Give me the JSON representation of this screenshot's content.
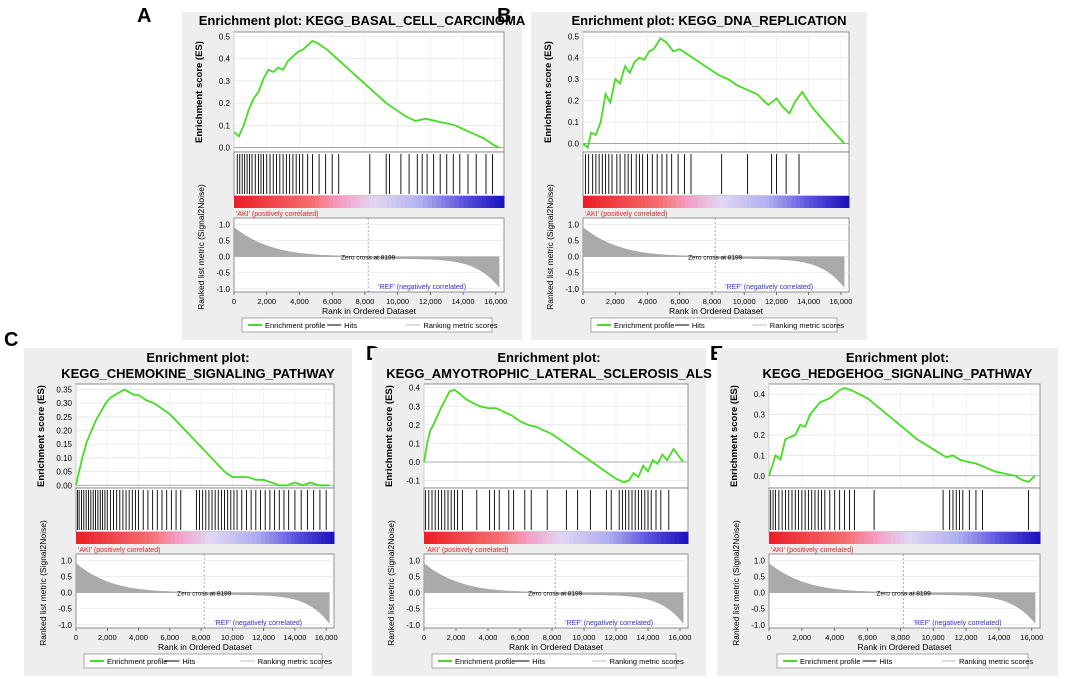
{
  "chart_data": [
    {
      "panel": "A",
      "type": "line",
      "title": "Enrichment plot: KEGG_BASAL_CELL_CARCINOMA",
      "ylabel_es": "Enrichment score (ES)",
      "ylabel_rank": "Ranked list metric (Signal2Noise)",
      "xlabel": "Rank in Ordered Dataset",
      "es_yticks": [
        "0.0",
        "0.1",
        "0.2",
        "0.3",
        "0.4",
        "0.5"
      ],
      "es_ylim": [
        -0.02,
        0.52
      ],
      "x": [
        0,
        300,
        600,
        900,
        1200,
        1500,
        1800,
        2100,
        2400,
        2700,
        3000,
        3300,
        3600,
        3900,
        4200,
        4500,
        4800,
        5100,
        5700,
        6300,
        6900,
        7500,
        8100,
        8700,
        9300,
        9900,
        10500,
        11100,
        11700,
        12300,
        12900,
        13500,
        14100,
        14700,
        15300,
        15900,
        16200
      ],
      "es": [
        0.07,
        0.05,
        0.1,
        0.17,
        0.22,
        0.25,
        0.31,
        0.35,
        0.34,
        0.36,
        0.35,
        0.39,
        0.41,
        0.43,
        0.44,
        0.46,
        0.48,
        0.47,
        0.44,
        0.4,
        0.36,
        0.32,
        0.28,
        0.24,
        0.2,
        0.17,
        0.14,
        0.12,
        0.13,
        0.12,
        0.11,
        0.1,
        0.08,
        0.06,
        0.04,
        0.01,
        0.0
      ],
      "hits": [
        200,
        350,
        500,
        650,
        800,
        950,
        1100,
        1300,
        1500,
        1650,
        1800,
        2000,
        2200,
        2400,
        2600,
        2800,
        3000,
        3200,
        3400,
        3600,
        3800,
        4000,
        4200,
        4500,
        4800,
        5200,
        5600,
        6000,
        6400,
        8300,
        9300,
        9500,
        10200,
        10700,
        11200,
        11500,
        11800,
        12200,
        12600,
        13000,
        13400,
        13800,
        14300,
        14800,
        15400,
        15800
      ],
      "zero_cross": "Zero cross at 8199",
      "pos_label": "'AKI' (positively correlated)",
      "neg_label": "'REF' (negatively correlated)",
      "rank_yticks": [
        "-1.0",
        "-0.5",
        "0.0",
        "0.5",
        "1.0"
      ],
      "xticks": [
        "0",
        "2,000",
        "4,000",
        "6,000",
        "8,000",
        "10,000",
        "12,000",
        "14,000",
        "16,000"
      ],
      "legend": [
        "Enrichment profile",
        "Hits",
        "Ranking metric scores"
      ]
    },
    {
      "panel": "B",
      "type": "line",
      "title": "Enrichment plot: KEGG_DNA_REPLICATION",
      "ylabel_es": "Enrichment score (ES)",
      "ylabel_rank": "Ranked list metric (Signal2Noise)",
      "xlabel": "Rank in Ordered Dataset",
      "es_yticks": [
        "0.0",
        "0.1",
        "0.2",
        "0.3",
        "0.4",
        "0.5"
      ],
      "es_ylim": [
        -0.04,
        0.52
      ],
      "x": [
        0,
        300,
        500,
        800,
        1100,
        1400,
        1700,
        2000,
        2300,
        2600,
        2900,
        3200,
        3500,
        3800,
        4100,
        4400,
        4800,
        5200,
        5600,
        6000,
        6600,
        7200,
        7800,
        8400,
        9000,
        9600,
        10200,
        10800,
        11200,
        11500,
        12000,
        12400,
        12800,
        13200,
        13600,
        14200,
        15000,
        16200
      ],
      "es": [
        0.0,
        -0.02,
        0.05,
        0.04,
        0.1,
        0.23,
        0.19,
        0.3,
        0.28,
        0.36,
        0.33,
        0.38,
        0.4,
        0.39,
        0.43,
        0.44,
        0.49,
        0.47,
        0.43,
        0.44,
        0.41,
        0.38,
        0.35,
        0.32,
        0.3,
        0.27,
        0.25,
        0.23,
        0.2,
        0.18,
        0.21,
        0.17,
        0.14,
        0.2,
        0.24,
        0.17,
        0.1,
        0.0
      ],
      "hits": [
        150,
        350,
        600,
        800,
        1000,
        1200,
        1400,
        1600,
        1800,
        2100,
        2300,
        2600,
        2800,
        3000,
        3300,
        3500,
        3700,
        4000,
        4300,
        4600,
        4900,
        5200,
        5500,
        5900,
        6300,
        6700,
        8600,
        10200,
        11700,
        12000,
        12600,
        13400
      ],
      "zero_cross": "Zero cross at 8199",
      "pos_label": "'AKI' (positively correlated)",
      "neg_label": "'REF' (negatively correlated)",
      "rank_yticks": [
        "-1.0",
        "-0.5",
        "0.0",
        "0.5",
        "1.0"
      ],
      "xticks": [
        "0",
        "2,000",
        "4,000",
        "6,000",
        "8,000",
        "10,000",
        "12,000",
        "14,000",
        "16,000"
      ],
      "legend": [
        "Enrichment profile",
        "Hits",
        "Ranking metric scores"
      ]
    },
    {
      "panel": "C",
      "type": "line",
      "title": "Enrichment plot:",
      "title2": "KEGG_CHEMOKINE_SIGNALING_PATHWAY",
      "ylabel_es": "Enrichment score (ES)",
      "ylabel_rank": "Ranked list metric (Signal2Noise)",
      "xlabel": "Rank in Ordered Dataset",
      "es_yticks": [
        "0.00",
        "0.05",
        "0.10",
        "0.15",
        "0.20",
        "0.25",
        "0.30",
        "0.35"
      ],
      "es_ylim": [
        -0.01,
        0.37
      ],
      "x": [
        0,
        200,
        400,
        700,
        1000,
        1300,
        1600,
        1900,
        2200,
        2500,
        2800,
        3100,
        3400,
        3700,
        4000,
        4500,
        5000,
        5500,
        6000,
        6500,
        7000,
        7500,
        8000,
        8500,
        9000,
        9500,
        10000,
        10500,
        11000,
        11500,
        12000,
        12500,
        13000,
        13500,
        14000,
        14500,
        15000,
        15500,
        16200
      ],
      "es": [
        0.0,
        0.05,
        0.1,
        0.16,
        0.2,
        0.24,
        0.27,
        0.3,
        0.32,
        0.33,
        0.34,
        0.35,
        0.34,
        0.33,
        0.33,
        0.31,
        0.3,
        0.28,
        0.26,
        0.23,
        0.2,
        0.17,
        0.14,
        0.11,
        0.08,
        0.05,
        0.03,
        0.03,
        0.03,
        0.02,
        0.02,
        0.01,
        0.0,
        0.0,
        0.01,
        0.0,
        0.01,
        0.0,
        0.0
      ],
      "hits": [
        100,
        200,
        350,
        500,
        650,
        800,
        950,
        1100,
        1250,
        1400,
        1550,
        1700,
        1850,
        2000,
        2200,
        2400,
        2600,
        2800,
        3000,
        3200,
        3400,
        3600,
        3800,
        4000,
        4300,
        4600,
        4900,
        5200,
        5500,
        5800,
        6100,
        6400,
        6700,
        7700,
        7900,
        8100,
        8300,
        8500,
        8700,
        8900,
        9100,
        9300,
        9500,
        9700,
        9900,
        10100,
        10300,
        10600,
        10900,
        11200,
        11500,
        11800,
        12100,
        12400,
        12700,
        13000,
        13300,
        13600,
        14000,
        14400,
        14800,
        15200,
        15600,
        16000
      ],
      "zero_cross": "Zero cross at 8199",
      "pos_label": "'AKI' (positively correlated)",
      "neg_label": "'REF' (negatively correlated)",
      "rank_yticks": [
        "-1.0",
        "-0.5",
        "0.0",
        "0.5",
        "1.0"
      ],
      "xticks": [
        "0",
        "2,000",
        "4,000",
        "6,000",
        "8,000",
        "10,000",
        "12,000",
        "14,000",
        "16,000"
      ],
      "legend": [
        "Enrichment profile",
        "Hits",
        "Ranking metric scores"
      ]
    },
    {
      "panel": "D",
      "type": "line",
      "title": "Enrichment plot:",
      "title2": "KEGG_AMYOTROPHIC_LATERAL_SCLEROSIS_ALS",
      "ylabel_es": "Enrichment score (ES)",
      "ylabel_rank": "Ranked list metric (Signal2Noise)",
      "xlabel": "Rank in Ordered Dataset",
      "es_yticks": [
        "-0.1",
        "0.0",
        "0.1",
        "0.2",
        "0.3",
        "0.4"
      ],
      "es_ylim": [
        -0.14,
        0.42
      ],
      "x": [
        0,
        200,
        400,
        700,
        1000,
        1300,
        1600,
        1900,
        2200,
        2600,
        3000,
        3500,
        4000,
        4500,
        5000,
        5500,
        6000,
        6500,
        7000,
        7500,
        8000,
        8500,
        9000,
        9500,
        10000,
        10500,
        11000,
        11500,
        12000,
        12500,
        12800,
        13100,
        13400,
        13700,
        14000,
        14300,
        14600,
        14900,
        15200,
        15600,
        16200
      ],
      "es": [
        0.0,
        0.1,
        0.17,
        0.22,
        0.28,
        0.33,
        0.38,
        0.39,
        0.37,
        0.34,
        0.32,
        0.3,
        0.29,
        0.29,
        0.27,
        0.25,
        0.22,
        0.2,
        0.19,
        0.17,
        0.15,
        0.12,
        0.09,
        0.06,
        0.03,
        0.0,
        -0.03,
        -0.06,
        -0.09,
        -0.11,
        -0.1,
        -0.06,
        -0.08,
        -0.02,
        -0.05,
        0.01,
        -0.01,
        0.04,
        0.01,
        0.07,
        0.0
      ],
      "hits": [
        100,
        300,
        500,
        700,
        900,
        1100,
        1300,
        1500,
        1700,
        1900,
        2100,
        2400,
        3300,
        4100,
        4400,
        4700,
        5300,
        5600,
        6300,
        6700,
        7700,
        8900,
        9600,
        10400,
        11400,
        11700,
        12200,
        12400,
        12600,
        12800,
        13000,
        13200,
        13400,
        13600,
        13800,
        14000,
        14200,
        14500,
        14800,
        15300
      ],
      "zero_cross": "Zero cross at 8199",
      "pos_label": "'AKI' (positively correlated)",
      "neg_label": "'REF' (negatively correlated)",
      "rank_yticks": [
        "-1.0",
        "-0.5",
        "0.0",
        "0.5",
        "1.0"
      ],
      "xticks": [
        "0",
        "2,000",
        "4,000",
        "6,000",
        "8,000",
        "10,000",
        "12,000",
        "14,000",
        "16,000"
      ],
      "legend": [
        "Enrichment profile",
        "Hits",
        "Ranking metric scores"
      ]
    },
    {
      "panel": "E",
      "type": "line",
      "title": "Enrichment plot:",
      "title2": "KEGG_HEDGEHOG_SIGNALING_PATHWAY",
      "ylabel_es": "Enrichment score (ES)",
      "ylabel_rank": "Ranked list metric (Signal2Noise)",
      "xlabel": "Rank in Ordered Dataset",
      "es_yticks": [
        "0.0",
        "0.1",
        "0.2",
        "0.3",
        "0.4"
      ],
      "es_ylim": [
        -0.06,
        0.45
      ],
      "x": [
        0,
        200,
        400,
        700,
        1000,
        1300,
        1600,
        1900,
        2200,
        2500,
        2800,
        3100,
        3400,
        3700,
        4000,
        4300,
        4600,
        5000,
        5500,
        6000,
        6600,
        7200,
        7800,
        8400,
        9000,
        9600,
        10200,
        10800,
        11200,
        11600,
        12000,
        12600,
        13200,
        13800,
        14400,
        15000,
        15400,
        15800,
        16200
      ],
      "es": [
        0.0,
        0.05,
        0.1,
        0.08,
        0.18,
        0.19,
        0.2,
        0.25,
        0.24,
        0.3,
        0.33,
        0.36,
        0.37,
        0.38,
        0.4,
        0.42,
        0.43,
        0.42,
        0.4,
        0.38,
        0.34,
        0.3,
        0.26,
        0.22,
        0.18,
        0.15,
        0.12,
        0.09,
        0.1,
        0.08,
        0.07,
        0.06,
        0.04,
        0.02,
        0.01,
        0.0,
        -0.02,
        -0.03,
        0.0
      ],
      "hits": [
        100,
        250,
        400,
        600,
        800,
        1000,
        1200,
        1400,
        1600,
        1800,
        2000,
        2200,
        2400,
        2600,
        2800,
        3000,
        3200,
        3400,
        3700,
        4000,
        4300,
        4600,
        4900,
        5200,
        6400,
        10600,
        11000,
        11200,
        11400,
        11600,
        11800,
        12200,
        12600,
        13000,
        15800
      ],
      "zero_cross": "Zero cross at 8199",
      "pos_label": "'AKI' (positively correlated)",
      "neg_label": "'REF' (negatively correlated)",
      "rank_yticks": [
        "-1.0",
        "-0.5",
        "0.0",
        "0.5",
        "1.0"
      ],
      "xticks": [
        "0",
        "2,000",
        "4,000",
        "6,000",
        "8,000",
        "10,000",
        "12,000",
        "14,000",
        "16,000"
      ],
      "legend": [
        "Enrichment profile",
        "Hits",
        "Ranking metric scores"
      ]
    }
  ],
  "colors": {
    "panel_bg": "#eeeeee",
    "profile": "#44dd22",
    "hit": "#000000",
    "metric": "#aaaaaa",
    "pos_text": "#dd2222",
    "neg_text": "#3333cc"
  }
}
